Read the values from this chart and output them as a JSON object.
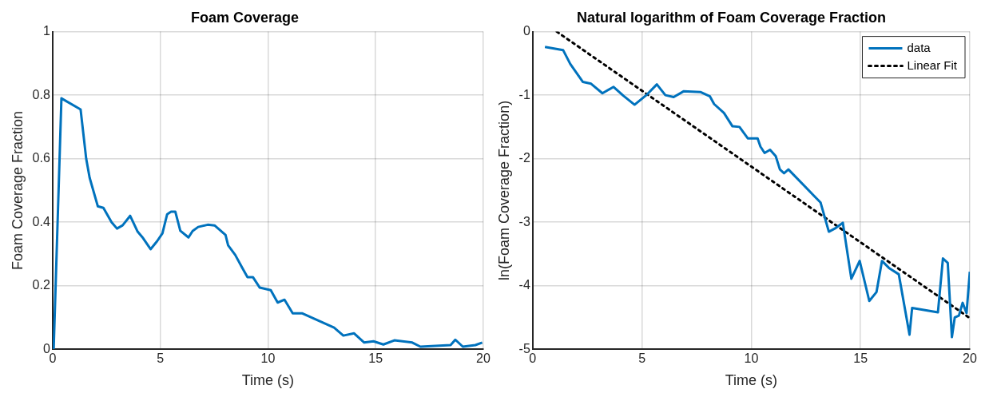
{
  "chart_data": [
    {
      "type": "line",
      "title": "Foam Coverage",
      "xlabel": "Time (s)",
      "ylabel": "Foam Coverage Fraction",
      "xlim": [
        0,
        20
      ],
      "ylim": [
        0,
        1
      ],
      "xticks": [
        0,
        5,
        10,
        15,
        20
      ],
      "yticks": [
        0,
        0.2,
        0.4,
        0.6,
        0.8,
        1
      ],
      "grid": true,
      "legend": false,
      "line_style": "solid",
      "marker": "none",
      "series": [
        {
          "color": "#0072bd",
          "x": [
            0.05,
            0.41,
            1.3,
            1.56,
            1.72,
            2.1,
            2.36,
            2.74,
            2.99,
            3.25,
            3.6,
            3.95,
            4.2,
            4.55,
            4.85,
            5.1,
            5.32,
            5.5,
            5.7,
            5.93,
            6.31,
            6.5,
            6.76,
            7.2,
            7.52,
            8.03,
            8.15,
            8.48,
            8.8,
            9.05,
            9.3,
            9.62,
            10.13,
            10.45,
            10.77,
            11.15,
            11.6,
            13.07,
            13.5,
            14.0,
            14.47,
            14.9,
            15.36,
            15.87,
            16.7,
            17.08,
            18.48,
            18.7,
            19.05,
            19.63,
            19.95
          ],
          "values": [
            0,
            0.79,
            0.755,
            0.6,
            0.54,
            0.45,
            0.445,
            0.4,
            0.38,
            0.39,
            0.42,
            0.37,
            0.35,
            0.315,
            0.34,
            0.365,
            0.425,
            0.433,
            0.433,
            0.373,
            0.352,
            0.372,
            0.385,
            0.392,
            0.39,
            0.36,
            0.327,
            0.297,
            0.257,
            0.227,
            0.227,
            0.194,
            0.186,
            0.147,
            0.156,
            0.113,
            0.113,
            0.068,
            0.043,
            0.05,
            0.021,
            0.025,
            0.015,
            0.028,
            0.021,
            0.008,
            0.013,
            0.03,
            0.008,
            0.013,
            0.021
          ]
        }
      ]
    },
    {
      "type": "line",
      "title": "Natural logarithm of Foam Coverage Fraction",
      "xlabel": "Time (s)",
      "ylabel": "ln(Foam Coverage Fraction)",
      "xlim": [
        0,
        20
      ],
      "ylim": [
        -5,
        0
      ],
      "xticks": [
        0,
        5,
        10,
        15,
        20
      ],
      "yticks": [
        -5,
        -4,
        -3,
        -2,
        -1,
        0
      ],
      "grid": true,
      "legend": "top right",
      "marker": "none",
      "series": [
        {
          "name": "data",
          "color": "#0072bd",
          "line_style": "solid",
          "x": [
            0.56,
            1.39,
            1.72,
            2.29,
            2.67,
            3.19,
            3.7,
            4.15,
            4.66,
            5.23,
            5.68,
            6.07,
            6.45,
            6.9,
            7.67,
            8.11,
            8.3,
            8.75,
            9.14,
            9.46,
            9.84,
            10.29,
            10.42,
            10.61,
            10.86,
            11.12,
            11.31,
            11.5,
            11.7,
            13.17,
            13.55,
            13.87,
            14.19,
            14.58,
            14.96,
            15.4,
            15.73,
            15.98,
            16.3,
            16.75,
            17.24,
            17.36,
            18.54,
            18.77,
            18.99,
            19.18,
            19.31,
            19.5,
            19.67,
            19.85,
            20
          ],
          "values": [
            -0.24,
            -0.29,
            -0.51,
            -0.79,
            -0.82,
            -0.97,
            -0.87,
            -1.01,
            -1.15,
            -0.99,
            -0.83,
            -1.0,
            -1.03,
            -0.94,
            -0.95,
            -1.02,
            -1.14,
            -1.28,
            -1.49,
            -1.5,
            -1.68,
            -1.68,
            -1.81,
            -1.91,
            -1.86,
            -1.96,
            -2.17,
            -2.23,
            -2.17,
            -2.69,
            -3.15,
            -3.09,
            -3.01,
            -3.89,
            -3.61,
            -4.24,
            -4.1,
            -3.61,
            -3.72,
            -3.82,
            -4.77,
            -4.35,
            -4.42,
            -3.57,
            -3.64,
            -4.81,
            -4.5,
            -4.47,
            -4.27,
            -4.43,
            -3.78
          ]
        },
        {
          "name": "Linear Fit",
          "type": "line",
          "color": "#000000",
          "line_style": "dotted",
          "x": [
            1.1,
            20
          ],
          "values": [
            0,
            -4.51
          ]
        }
      ]
    }
  ]
}
